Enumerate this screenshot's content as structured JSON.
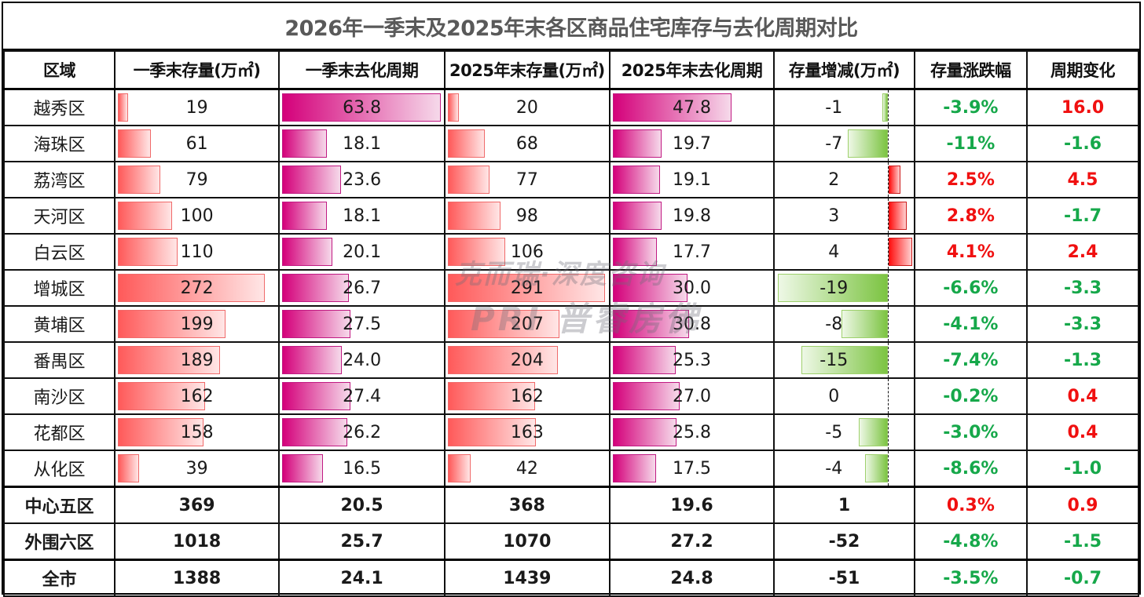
{
  "title": "2026年一季末及2025年末各区商品住宅库存与去化周期对比",
  "headers": [
    "区域",
    "一季末存量(万㎡)",
    "一季末去化周期",
    "2025年末存量(万㎡)",
    "2025年末去化周期",
    "存量增减(万㎡)",
    "存量涨跌幅",
    "周期变化"
  ],
  "colors": {
    "stock_bar": "#ff5a5a",
    "cycle_bar": "#d4007a",
    "decrease_bar": "#7cc442",
    "increase_bar": "#ff1010",
    "positive_text": "#f01010",
    "negative_text": "#16a84a",
    "title_text": "#595959"
  },
  "rows": [
    {
      "region": "越秀区",
      "q1_stock": "19",
      "q1_cycle": "63.8",
      "y25_stock": "20",
      "y25_cycle": "47.8",
      "delta": "-1",
      "pct": "-3.9%",
      "cycle_change": "16.0",
      "pct_sign": "neg",
      "cc_sign": "pos"
    },
    {
      "region": "海珠区",
      "q1_stock": "61",
      "q1_cycle": "18.1",
      "y25_stock": "68",
      "y25_cycle": "19.7",
      "delta": "-7",
      "pct": "-11%",
      "cycle_change": "-1.6",
      "pct_sign": "neg",
      "cc_sign": "neg"
    },
    {
      "region": "荔湾区",
      "q1_stock": "79",
      "q1_cycle": "23.6",
      "y25_stock": "77",
      "y25_cycle": "19.1",
      "delta": "2",
      "pct": "2.5%",
      "cycle_change": "4.5",
      "pct_sign": "pos",
      "cc_sign": "pos"
    },
    {
      "region": "天河区",
      "q1_stock": "100",
      "q1_cycle": "18.1",
      "y25_stock": "98",
      "y25_cycle": "19.8",
      "delta": "3",
      "pct": "2.8%",
      "cycle_change": "-1.7",
      "pct_sign": "pos",
      "cc_sign": "neg"
    },
    {
      "region": "白云区",
      "q1_stock": "110",
      "q1_cycle": "20.1",
      "y25_stock": "106",
      "y25_cycle": "17.7",
      "delta": "4",
      "pct": "4.1%",
      "cycle_change": "2.4",
      "pct_sign": "pos",
      "cc_sign": "pos"
    },
    {
      "region": "增城区",
      "q1_stock": "272",
      "q1_cycle": "26.7",
      "y25_stock": "291",
      "y25_cycle": "30.0",
      "delta": "-19",
      "pct": "-6.6%",
      "cycle_change": "-3.3",
      "pct_sign": "neg",
      "cc_sign": "neg"
    },
    {
      "region": "黄埔区",
      "q1_stock": "199",
      "q1_cycle": "27.5",
      "y25_stock": "207",
      "y25_cycle": "30.8",
      "delta": "-8",
      "pct": "-4.1%",
      "cycle_change": "-3.3",
      "pct_sign": "neg",
      "cc_sign": "neg"
    },
    {
      "region": "番禺区",
      "q1_stock": "189",
      "q1_cycle": "24.0",
      "y25_stock": "204",
      "y25_cycle": "25.3",
      "delta": "-15",
      "pct": "-7.4%",
      "cycle_change": "-1.3",
      "pct_sign": "neg",
      "cc_sign": "neg"
    },
    {
      "region": "南沙区",
      "q1_stock": "162",
      "q1_cycle": "27.4",
      "y25_stock": "162",
      "y25_cycle": "27.0",
      "delta": "0",
      "pct": "-0.2%",
      "cycle_change": "0.4",
      "pct_sign": "neg",
      "cc_sign": "pos"
    },
    {
      "region": "花都区",
      "q1_stock": "158",
      "q1_cycle": "26.2",
      "y25_stock": "163",
      "y25_cycle": "25.8",
      "delta": "-5",
      "pct": "-3.0%",
      "cycle_change": "0.4",
      "pct_sign": "neg",
      "cc_sign": "pos"
    },
    {
      "region": "从化区",
      "q1_stock": "39",
      "q1_cycle": "16.5",
      "y25_stock": "42",
      "y25_cycle": "17.5",
      "delta": "-4",
      "pct": "-8.6%",
      "cycle_change": "-1.0",
      "pct_sign": "neg",
      "cc_sign": "neg"
    }
  ],
  "summary": [
    {
      "region": "中心五区",
      "q1_stock": "369",
      "q1_cycle": "20.5",
      "y25_stock": "368",
      "y25_cycle": "19.6",
      "delta": "1",
      "pct": "0.3%",
      "cycle_change": "0.9",
      "pct_sign": "pos",
      "cc_sign": "pos"
    },
    {
      "region": "外围六区",
      "q1_stock": "1018",
      "q1_cycle": "25.7",
      "y25_stock": "1070",
      "y25_cycle": "27.2",
      "delta": "-52",
      "pct": "-4.8%",
      "cycle_change": "-1.5",
      "pct_sign": "neg",
      "cc_sign": "neg"
    },
    {
      "region": "全市",
      "q1_stock": "1388",
      "q1_cycle": "24.1",
      "y25_stock": "1439",
      "y25_cycle": "24.8",
      "delta": "-51",
      "pct": "-3.5%",
      "cycle_change": "-0.7",
      "pct_sign": "neg",
      "cc_sign": "neg"
    }
  ],
  "watermark": {
    "line1": "克而瑞·深度咨询",
    "line2": "PRI 普睿房佛"
  }
}
